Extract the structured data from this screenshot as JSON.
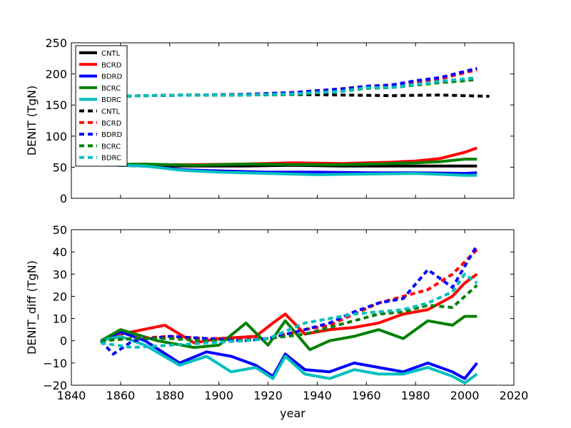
{
  "chart_data": [
    {
      "type": "line",
      "ylabel": "DENIT (TgN)",
      "xlabel": "",
      "xlim": [
        1840,
        2020
      ],
      "ylim": [
        0,
        250
      ],
      "yticks": [
        0,
        50,
        100,
        150,
        200,
        250
      ],
      "xticks": [],
      "legend": "top-left",
      "legend_entries": [
        "CNTL",
        "BCRD",
        "BDRD",
        "BCRC",
        "BDRC",
        "CNTL",
        "BCRD",
        "BDRD",
        "BCRC",
        "BDRC"
      ],
      "series": [
        {
          "name": "CNTL",
          "style": "solid",
          "color": "#000000",
          "x": [
            1852,
            1870,
            1890,
            1910,
            1930,
            1950,
            1970,
            1990,
            2005
          ],
          "y": [
            54,
            52,
            52,
            52,
            53,
            52,
            52,
            52,
            52
          ]
        },
        {
          "name": "BCRD",
          "style": "solid",
          "color": "#ff0000",
          "x": [
            1852,
            1870,
            1890,
            1910,
            1930,
            1950,
            1960,
            1970,
            1980,
            1990,
            2000,
            2005
          ],
          "y": [
            54,
            54,
            54,
            55,
            57,
            56,
            57,
            58,
            60,
            64,
            74,
            81
          ]
        },
        {
          "name": "BDRD",
          "style": "solid",
          "color": "#0000ff",
          "x": [
            1852,
            1870,
            1885,
            1900,
            1920,
            1940,
            1960,
            1980,
            2000,
            2005
          ],
          "y": [
            54,
            52,
            46,
            44,
            42,
            42,
            41,
            41,
            40,
            41
          ]
        },
        {
          "name": "BCRC",
          "style": "solid",
          "color": "#008000",
          "x": [
            1852,
            1870,
            1890,
            1910,
            1930,
            1950,
            1960,
            1970,
            1980,
            1990,
            2000,
            2005
          ],
          "y": [
            54,
            55,
            53,
            55,
            54,
            54,
            55,
            56,
            57,
            59,
            63,
            63
          ]
        },
        {
          "name": "BDRC",
          "style": "solid",
          "color": "#00bfbf",
          "x": [
            1852,
            1870,
            1885,
            1900,
            1920,
            1940,
            1960,
            1980,
            2000,
            2005
          ],
          "y": [
            54,
            52,
            45,
            42,
            40,
            38,
            39,
            40,
            37,
            37
          ]
        },
        {
          "name": "CNTL",
          "style": "dashed",
          "color": "#000000",
          "x": [
            1852,
            1870,
            1890,
            1910,
            1930,
            1950,
            1970,
            1990,
            2010
          ],
          "y": [
            163,
            165,
            166,
            166,
            167,
            166,
            165,
            166,
            164
          ]
        },
        {
          "name": "BCRD",
          "style": "dashed",
          "color": "#ff0000",
          "x": [
            1852,
            1870,
            1890,
            1910,
            1930,
            1950,
            1960,
            1970,
            1980,
            1990,
            2000,
            2005
          ],
          "y": [
            163,
            165,
            166,
            167,
            170,
            176,
            180,
            182,
            187,
            192,
            202,
            207
          ]
        },
        {
          "name": "BDRD",
          "style": "dashed",
          "color": "#0000ff",
          "x": [
            1852,
            1870,
            1890,
            1910,
            1930,
            1950,
            1960,
            1970,
            1980,
            1990,
            2000,
            2005
          ],
          "y": [
            163,
            165,
            166,
            167,
            170,
            176,
            180,
            182,
            189,
            194,
            204,
            209
          ]
        },
        {
          "name": "BCRC",
          "style": "dashed",
          "color": "#008000",
          "x": [
            1852,
            1870,
            1890,
            1910,
            1930,
            1950,
            1960,
            1970,
            1980,
            1990,
            2000,
            2005
          ],
          "y": [
            163,
            165,
            166,
            166,
            167,
            172,
            177,
            178,
            182,
            186,
            189,
            191
          ]
        },
        {
          "name": "BDRC",
          "style": "dashed",
          "color": "#00bfbf",
          "x": [
            1852,
            1870,
            1890,
            1910,
            1930,
            1950,
            1960,
            1970,
            1980,
            1990,
            2000,
            2005
          ],
          "y": [
            163,
            165,
            166,
            166,
            168,
            172,
            178,
            178,
            183,
            188,
            192,
            194
          ]
        }
      ]
    },
    {
      "type": "line",
      "ylabel": "DENIT_diff (TgN)",
      "xlabel": "year",
      "xlim": [
        1840,
        2020
      ],
      "ylim": [
        -20,
        50
      ],
      "yticks": [
        -20,
        -10,
        0,
        10,
        20,
        30,
        40,
        50
      ],
      "xticks": [
        1840,
        1860,
        1880,
        1900,
        1920,
        1940,
        1960,
        1980,
        2000,
        2020
      ],
      "series": [
        {
          "name": "BCRD",
          "style": "solid",
          "color": "#ff0000",
          "x": [
            1852,
            1860,
            1878,
            1890,
            1900,
            1915,
            1922,
            1927,
            1935,
            1945,
            1955,
            1965,
            1975,
            1985,
            1995,
            2000,
            2005
          ],
          "y": [
            0,
            3,
            7,
            -1,
            1,
            2,
            8,
            12,
            3,
            5,
            6,
            8,
            12,
            14,
            20,
            26,
            30
          ]
        },
        {
          "name": "BDRD",
          "style": "solid",
          "color": "#0000ff",
          "x": [
            1852,
            1860,
            1870,
            1884,
            1895,
            1905,
            1915,
            1922,
            1927,
            1935,
            1945,
            1955,
            1965,
            1975,
            1985,
            1995,
            2000,
            2005
          ],
          "y": [
            0,
            4,
            0,
            -10,
            -5,
            -7,
            -11,
            -16,
            -6,
            -13,
            -14,
            -10,
            -12,
            -14,
            -10,
            -14,
            -17,
            -10
          ]
        },
        {
          "name": "BCRC",
          "style": "solid",
          "color": "#008000",
          "x": [
            1852,
            1860,
            1875,
            1890,
            1900,
            1911,
            1920,
            1927,
            1937,
            1945,
            1955,
            1965,
            1975,
            1985,
            1995,
            2000,
            2005
          ],
          "y": [
            0,
            5,
            0,
            -3,
            -2,
            8,
            -2,
            9,
            -4,
            0,
            2,
            5,
            1,
            9,
            7,
            11,
            11
          ]
        },
        {
          "name": "BDRC",
          "style": "solid",
          "color": "#00bfbf",
          "x": [
            1852,
            1860,
            1870,
            1884,
            1895,
            1905,
            1915,
            1922,
            1927,
            1935,
            1945,
            1955,
            1965,
            1975,
            1985,
            1995,
            2000,
            2005
          ],
          "y": [
            0,
            2,
            -2,
            -11,
            -7,
            -14,
            -12,
            -17,
            -7,
            -15,
            -17,
            -13,
            -15,
            -15,
            -12,
            -16,
            -19,
            -15
          ]
        },
        {
          "name": "BCRD",
          "style": "dashed",
          "color": "#ff0000",
          "x": [
            1852,
            1865,
            1880,
            1895,
            1910,
            1920,
            1935,
            1945,
            1955,
            1965,
            1975,
            1985,
            1995,
            2005
          ],
          "y": [
            0,
            1,
            2,
            1,
            1,
            1,
            5,
            7,
            12,
            17,
            20,
            23,
            30,
            41
          ]
        },
        {
          "name": "BDRD",
          "style": "dashed",
          "color": "#0000ff",
          "x": [
            1852,
            1857,
            1865,
            1880,
            1895,
            1910,
            1920,
            1935,
            1945,
            1955,
            1965,
            1975,
            1985,
            1995,
            2005
          ],
          "y": [
            0,
            -6,
            0,
            2,
            1,
            0,
            1,
            5,
            8,
            13,
            17,
            19,
            32,
            24,
            43
          ]
        },
        {
          "name": "BCRC",
          "style": "dashed",
          "color": "#008000",
          "x": [
            1852,
            1865,
            1880,
            1895,
            1910,
            1920,
            1935,
            1945,
            1955,
            1965,
            1975,
            1985,
            1995,
            2005
          ],
          "y": [
            0,
            1,
            1,
            0,
            0,
            1,
            3,
            6,
            9,
            12,
            13,
            16,
            15,
            25
          ]
        },
        {
          "name": "BDRC",
          "style": "dashed",
          "color": "#00bfbf",
          "x": [
            1852,
            1865,
            1880,
            1895,
            1910,
            1920,
            1935,
            1945,
            1955,
            1965,
            1975,
            1985,
            1995,
            2000,
            2005
          ],
          "y": [
            -1,
            -3,
            -2,
            -1,
            0,
            1,
            8,
            10,
            12,
            13,
            14,
            17,
            22,
            30,
            26
          ]
        }
      ]
    }
  ]
}
